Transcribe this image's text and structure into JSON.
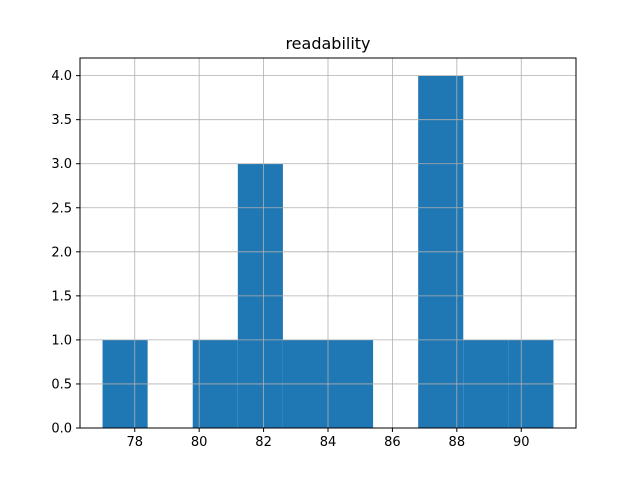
{
  "chart_data": {
    "type": "bar",
    "title": "readability",
    "xlabel": "",
    "ylabel": "",
    "bin_edges": [
      77.0,
      78.4,
      79.8,
      81.2,
      82.6,
      84.0,
      85.4,
      86.8,
      88.2,
      89.6,
      91.0
    ],
    "values": [
      1,
      0,
      1,
      3,
      1,
      1,
      0,
      4,
      1,
      1
    ],
    "xlim": [
      76.3,
      91.7
    ],
    "ylim": [
      0,
      4.2
    ],
    "xticks": [
      78,
      80,
      82,
      84,
      86,
      88,
      90
    ],
    "yticks": [
      0.0,
      0.5,
      1.0,
      1.5,
      2.0,
      2.5,
      3.0,
      3.5,
      4.0
    ],
    "grid": true,
    "bar_color": "#1f77b4"
  }
}
